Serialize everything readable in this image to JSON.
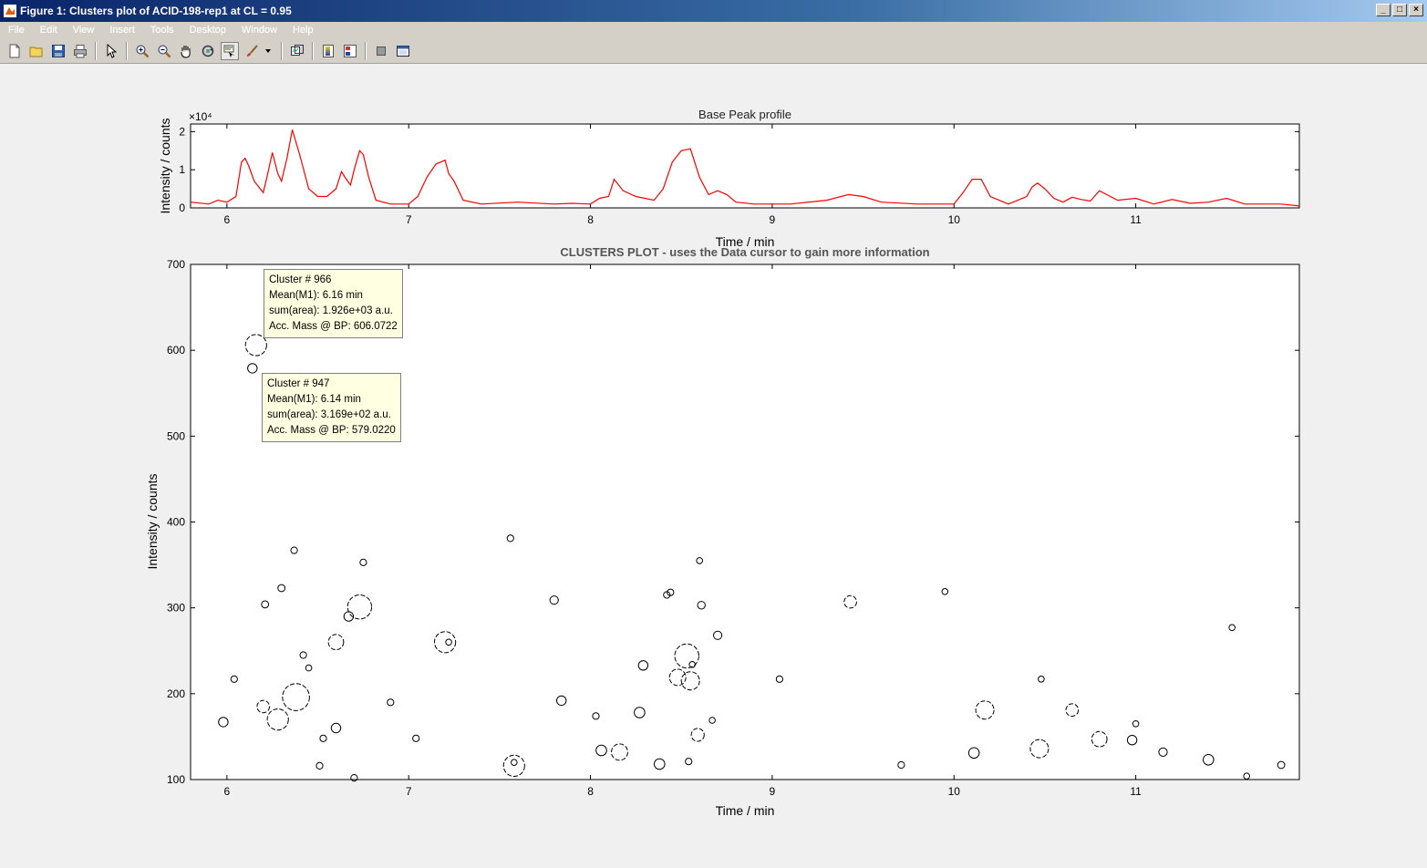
{
  "window": {
    "title": "Figure 1: Clusters plot of ACID-198-rep1 at CL = 0.95",
    "buttons": [
      "minimize",
      "maximize",
      "close"
    ]
  },
  "menu": [
    "File",
    "Edit",
    "View",
    "Insert",
    "Tools",
    "Desktop",
    "Window",
    "Help"
  ],
  "toolbar": [
    {
      "name": "new-figure",
      "icon": "new-file-icon"
    },
    {
      "name": "open-file",
      "icon": "folder-open-icon"
    },
    {
      "name": "save-figure",
      "icon": "save-icon"
    },
    {
      "name": "print-figure",
      "icon": "printer-icon"
    },
    {
      "name": "edit-plot",
      "icon": "arrow-pointer-icon"
    },
    {
      "name": "zoom-in",
      "icon": "zoom-in-icon"
    },
    {
      "name": "zoom-out",
      "icon": "zoom-out-icon"
    },
    {
      "name": "pan",
      "icon": "hand-icon"
    },
    {
      "name": "rotate-3d",
      "icon": "rotate-icon"
    },
    {
      "name": "data-cursor",
      "icon": "data-cursor-icon",
      "pressed": true
    },
    {
      "name": "brush",
      "icon": "brush-icon"
    },
    {
      "name": "link-plot",
      "icon": "link-icon"
    },
    {
      "name": "insert-colorbar",
      "icon": "colorbar-icon"
    },
    {
      "name": "insert-legend",
      "icon": "legend-icon"
    },
    {
      "name": "hide-plot-tools",
      "icon": "hide-tools-icon"
    },
    {
      "name": "show-plot-tools",
      "icon": "show-tools-icon"
    }
  ],
  "colors": {
    "profile_line": "#ff0000",
    "scatter": "#000000",
    "tooltip_bg": "#ffffe1"
  },
  "chart_data": [
    {
      "type": "line",
      "title": "Base Peak profile",
      "xlabel": "Time / min",
      "ylabel": "Intensity / counts",
      "exponent_label": "×10⁴",
      "xlim": [
        5.8,
        11.9
      ],
      "ylim": [
        0,
        2.2
      ],
      "xticks": [
        6,
        7,
        8,
        9,
        10,
        11
      ],
      "yticks": [
        0,
        1,
        2
      ],
      "series": [
        {
          "x": [
            5.8,
            5.9,
            5.95,
            6.0,
            6.05,
            6.08,
            6.1,
            6.12,
            6.15,
            6.2,
            6.22,
            6.25,
            6.28,
            6.3,
            6.33,
            6.36,
            6.4,
            6.45,
            6.5,
            6.55,
            6.6,
            6.63,
            6.65,
            6.68,
            6.7,
            6.73,
            6.75,
            6.78,
            6.82,
            6.9,
            7.0,
            7.05,
            7.1,
            7.15,
            7.2,
            7.22,
            7.25,
            7.3,
            7.4,
            7.6,
            7.8,
            7.9,
            8.0,
            8.05,
            8.1,
            8.13,
            8.18,
            8.25,
            8.3,
            8.35,
            8.4,
            8.45,
            8.5,
            8.55,
            8.6,
            8.65,
            8.7,
            8.75,
            8.8,
            8.9,
            9.1,
            9.3,
            9.42,
            9.5,
            9.6,
            9.8,
            10.0,
            10.05,
            10.1,
            10.15,
            10.2,
            10.3,
            10.4,
            10.43,
            10.46,
            10.5,
            10.55,
            10.6,
            10.65,
            10.7,
            10.75,
            10.8,
            10.9,
            11.0,
            11.1,
            11.2,
            11.3,
            11.4,
            11.5,
            11.6,
            11.7,
            11.8,
            11.9
          ],
          "y": [
            0.15,
            0.1,
            0.2,
            0.15,
            0.3,
            1.2,
            1.3,
            1.1,
            0.7,
            0.4,
            0.8,
            1.45,
            0.9,
            0.7,
            1.3,
            2.05,
            1.4,
            0.5,
            0.3,
            0.3,
            0.5,
            0.95,
            0.8,
            0.6,
            1.0,
            1.5,
            1.4,
            0.8,
            0.2,
            0.1,
            0.1,
            0.3,
            0.8,
            1.15,
            1.25,
            0.9,
            0.7,
            0.2,
            0.1,
            0.15,
            0.1,
            0.12,
            0.1,
            0.25,
            0.3,
            0.75,
            0.45,
            0.3,
            0.25,
            0.2,
            0.5,
            1.2,
            1.5,
            1.55,
            0.8,
            0.35,
            0.45,
            0.35,
            0.15,
            0.1,
            0.1,
            0.2,
            0.35,
            0.3,
            0.15,
            0.1,
            0.1,
            0.4,
            0.75,
            0.75,
            0.3,
            0.1,
            0.3,
            0.55,
            0.65,
            0.5,
            0.25,
            0.15,
            0.28,
            0.22,
            0.18,
            0.45,
            0.2,
            0.25,
            0.1,
            0.22,
            0.12,
            0.15,
            0.25,
            0.1,
            0.1,
            0.1,
            0.05
          ]
        }
      ]
    },
    {
      "type": "scatter",
      "title": "CLUSTERS PLOT - uses the Data cursor to gain more information",
      "xlabel": "Time / min",
      "ylabel": "Intensity / counts",
      "xlim": [
        5.8,
        11.9
      ],
      "ylim": [
        100,
        700
      ],
      "xticks": [
        6,
        7,
        8,
        9,
        10,
        11
      ],
      "yticks": [
        100,
        200,
        300,
        400,
        500,
        600,
        700
      ],
      "points": [
        {
          "x": 6.16,
          "y": 606,
          "size": 3
        },
        {
          "x": 6.14,
          "y": 579,
          "size": 1
        },
        {
          "x": 5.98,
          "y": 167,
          "size": 1
        },
        {
          "x": 6.04,
          "y": 217,
          "size": 0.5
        },
        {
          "x": 6.2,
          "y": 185,
          "size": 1.5
        },
        {
          "x": 6.21,
          "y": 304,
          "size": 0.6
        },
        {
          "x": 6.28,
          "y": 170,
          "size": 3
        },
        {
          "x": 6.3,
          "y": 323,
          "size": 0.6
        },
        {
          "x": 6.38,
          "y": 196,
          "size": 4
        },
        {
          "x": 6.37,
          "y": 367,
          "size": 0.5
        },
        {
          "x": 6.42,
          "y": 245,
          "size": 0.5
        },
        {
          "x": 6.45,
          "y": 230,
          "size": 0.4
        },
        {
          "x": 6.51,
          "y": 116,
          "size": 0.5
        },
        {
          "x": 6.53,
          "y": 148,
          "size": 0.5
        },
        {
          "x": 6.6,
          "y": 260,
          "size": 2
        },
        {
          "x": 6.6,
          "y": 160,
          "size": 1
        },
        {
          "x": 6.67,
          "y": 290,
          "size": 1
        },
        {
          "x": 6.73,
          "y": 301,
          "size": 3.5
        },
        {
          "x": 6.7,
          "y": 102,
          "size": 0.5
        },
        {
          "x": 6.75,
          "y": 353,
          "size": 0.5
        },
        {
          "x": 6.9,
          "y": 190,
          "size": 0.5
        },
        {
          "x": 7.04,
          "y": 148,
          "size": 0.5
        },
        {
          "x": 7.2,
          "y": 260,
          "size": 3
        },
        {
          "x": 7.22,
          "y": 260,
          "size": 0.4
        },
        {
          "x": 7.56,
          "y": 381,
          "size": 0.5
        },
        {
          "x": 7.58,
          "y": 116,
          "size": 3
        },
        {
          "x": 7.58,
          "y": 120,
          "size": 0.4
        },
        {
          "x": 7.8,
          "y": 309,
          "size": 0.8
        },
        {
          "x": 7.84,
          "y": 192,
          "size": 1
        },
        {
          "x": 8.03,
          "y": 174,
          "size": 0.5
        },
        {
          "x": 8.06,
          "y": 134,
          "size": 1.2
        },
        {
          "x": 8.16,
          "y": 132,
          "size": 2.2
        },
        {
          "x": 8.27,
          "y": 178,
          "size": 1.2
        },
        {
          "x": 8.29,
          "y": 233,
          "size": 1
        },
        {
          "x": 8.38,
          "y": 118,
          "size": 1.2
        },
        {
          "x": 8.42,
          "y": 315,
          "size": 0.5
        },
        {
          "x": 8.44,
          "y": 318,
          "size": 0.5
        },
        {
          "x": 8.48,
          "y": 219,
          "size": 2.2
        },
        {
          "x": 8.53,
          "y": 244,
          "size": 3.5
        },
        {
          "x": 8.55,
          "y": 215,
          "size": 2.5
        },
        {
          "x": 8.54,
          "y": 121,
          "size": 0.5
        },
        {
          "x": 8.56,
          "y": 234,
          "size": 0.4
        },
        {
          "x": 8.59,
          "y": 152,
          "size": 1.6
        },
        {
          "x": 8.6,
          "y": 355,
          "size": 0.4
        },
        {
          "x": 8.61,
          "y": 303,
          "size": 0.7
        },
        {
          "x": 8.67,
          "y": 169,
          "size": 0.4
        },
        {
          "x": 8.7,
          "y": 268,
          "size": 0.8
        },
        {
          "x": 9.04,
          "y": 217,
          "size": 0.5
        },
        {
          "x": 9.43,
          "y": 307,
          "size": 1.5
        },
        {
          "x": 9.71,
          "y": 117,
          "size": 0.5
        },
        {
          "x": 9.95,
          "y": 319,
          "size": 0.4
        },
        {
          "x": 10.11,
          "y": 131,
          "size": 1.2
        },
        {
          "x": 10.17,
          "y": 181,
          "size": 2.5
        },
        {
          "x": 10.47,
          "y": 136,
          "size": 2.5
        },
        {
          "x": 10.48,
          "y": 217,
          "size": 0.4
        },
        {
          "x": 10.65,
          "y": 181,
          "size": 1.5
        },
        {
          "x": 10.8,
          "y": 147,
          "size": 2
        },
        {
          "x": 10.98,
          "y": 146,
          "size": 1
        },
        {
          "x": 11.0,
          "y": 165,
          "size": 0.4
        },
        {
          "x": 11.15,
          "y": 132,
          "size": 0.8
        },
        {
          "x": 11.4,
          "y": 123,
          "size": 1.2
        },
        {
          "x": 11.53,
          "y": 277,
          "size": 0.4
        },
        {
          "x": 11.61,
          "y": 104,
          "size": 0.4
        },
        {
          "x": 11.8,
          "y": 117,
          "size": 0.6
        }
      ]
    }
  ],
  "tooltips": [
    {
      "lines": [
        "Cluster # 966",
        "Mean(M1): 6.16 min",
        "sum(area): 1.926e+03 a.u.",
        "Acc. Mass @ BP: 606.0722"
      ]
    },
    {
      "lines": [
        "Cluster # 947",
        "Mean(M1): 6.14 min",
        "sum(area): 3.169e+02 a.u.",
        "Acc. Mass @ BP: 579.0220"
      ]
    }
  ]
}
